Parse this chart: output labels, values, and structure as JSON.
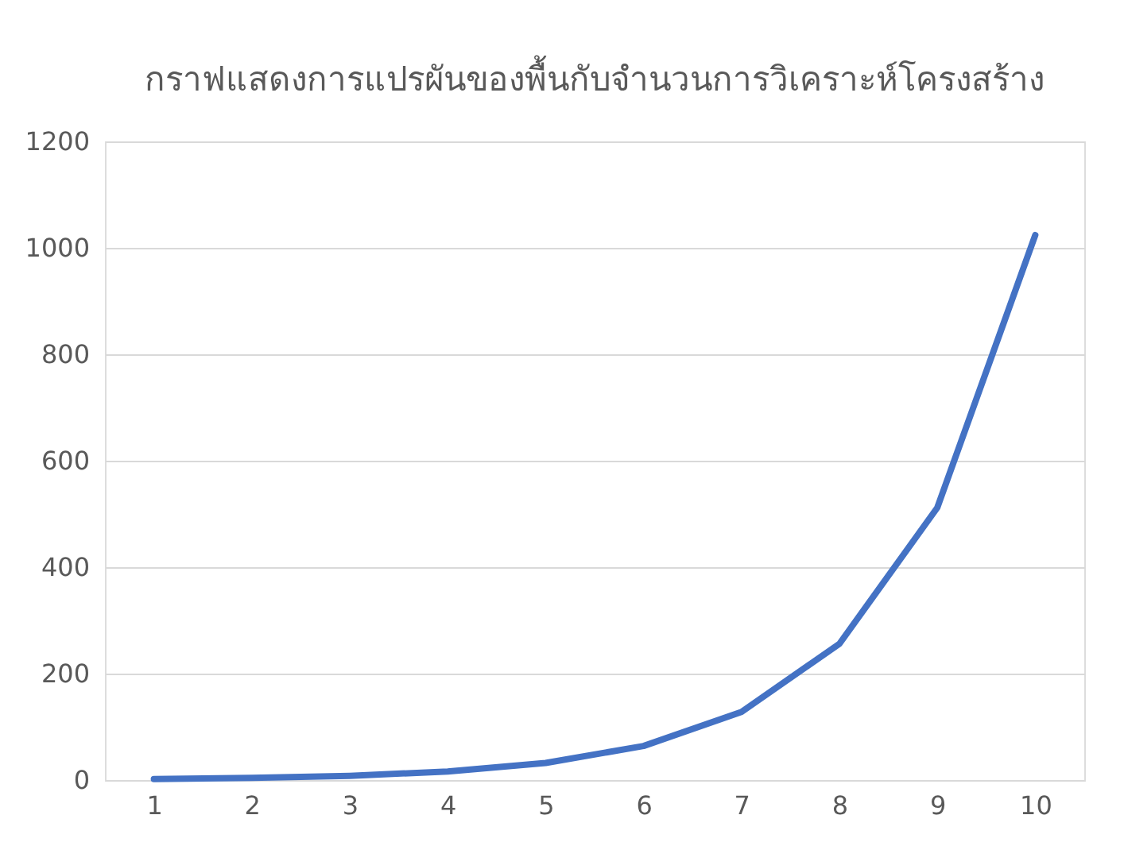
{
  "chart_data": {
    "type": "line",
    "title": "กราฟแสดงการแปรผันของพื้นกับจำนวนการวิเคราะห์โครงสร้าง",
    "categories": [
      "1",
      "2",
      "3",
      "4",
      "5",
      "6",
      "7",
      "8",
      "9",
      "10"
    ],
    "series": [
      {
        "color": "#4472c4",
        "values": [
          2,
          4,
          8,
          16,
          32,
          64,
          128,
          256,
          512,
          1024
        ]
      }
    ],
    "ylim": [
      0,
      1200
    ],
    "yticks": [
      0,
      200,
      400,
      600,
      800,
      1000,
      1200
    ],
    "grid": "y",
    "legend": false,
    "marker": "none",
    "line_style": "solid"
  }
}
